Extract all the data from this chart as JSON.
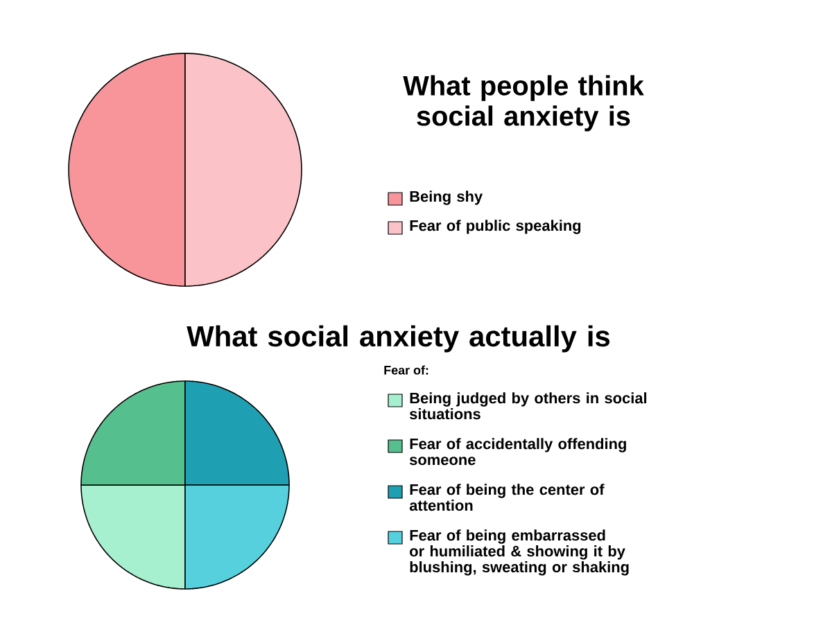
{
  "chart_data": [
    {
      "type": "pie",
      "title": "What people think social anxiety is",
      "categories": [
        "Being shy",
        "Fear of public speaking"
      ],
      "values": [
        50,
        50
      ],
      "colors": [
        "#f7959b",
        "#fbc3c8"
      ],
      "legend": "right"
    },
    {
      "type": "pie",
      "title": "What social anxiety actually is",
      "subtitle": "Fear of:",
      "categories": [
        "Being judged by others in social situations",
        "Fear of accidentally offending someone",
        "Fear of being the center of attention",
        "Fear of being embarrassed or humiliated & showing it by blushing, sweating or shaking"
      ],
      "values": [
        25,
        25,
        25,
        25
      ],
      "colors": [
        "#a6efcf",
        "#55c08d",
        "#1fa0b2",
        "#57d0dd"
      ],
      "legend": "right"
    }
  ]
}
